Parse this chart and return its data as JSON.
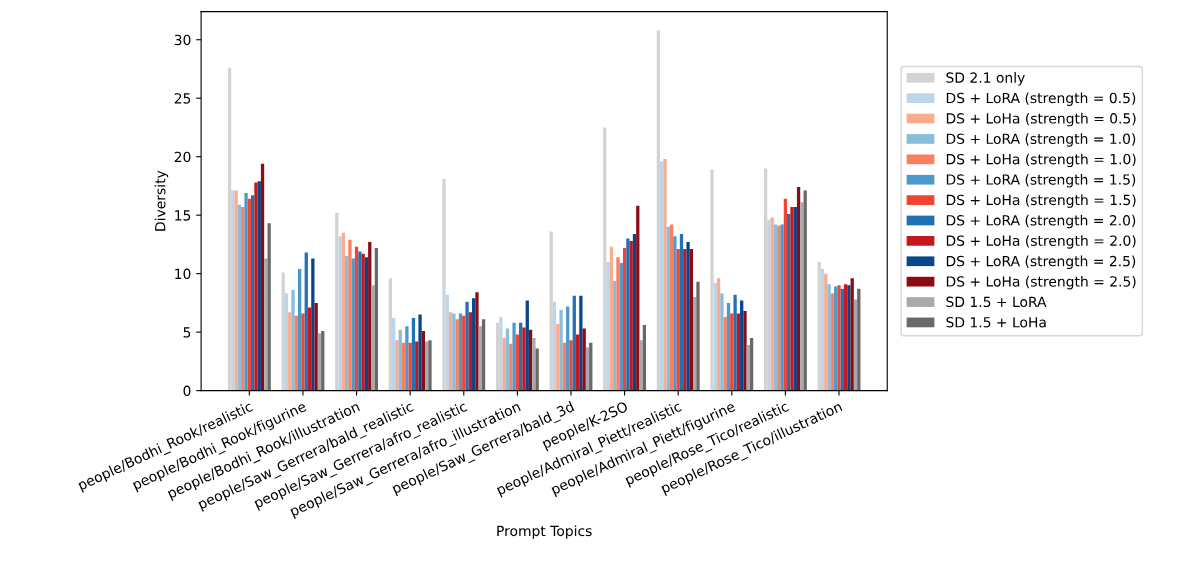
{
  "chart_data": {
    "type": "bar",
    "xlabel": "Prompt Topics",
    "ylabel": "Diversity",
    "ylim": [
      0,
      32.4
    ],
    "yticks": [
      0,
      5,
      10,
      15,
      20,
      25,
      30
    ],
    "grid": false,
    "legend": "right",
    "categories": [
      "people/Bodhi_Rook/realistic",
      "people/Bodhi_Rook/figurine",
      "people/Bodhi_Rook/illustration",
      "people/Saw_Gerrera/bald_realistic",
      "people/Saw_Gerrera/afro_realistic",
      "people/Saw_Gerrera/afro_illustration",
      "people/Saw_Gerrera/bald_3d",
      "people/K-2SO",
      "people/Admiral_Piett/realistic",
      "people/Admiral_Piett/figurine",
      "people/Rose_Tico/realistic",
      "people/Rose_Tico/illustration"
    ],
    "series": [
      {
        "name": "SD 2.1 only",
        "color": "#d3d3d3",
        "values": [
          27.6,
          10.1,
          15.2,
          9.6,
          18.1,
          5.8,
          13.6,
          22.5,
          30.8,
          18.9,
          19.0,
          11.0
        ]
      },
      {
        "name": "DS + LoRA (strength = 0.5)",
        "color": "#bad6eb",
        "values": [
          17.1,
          8.3,
          13.2,
          6.2,
          8.2,
          6.3,
          7.6,
          11.0,
          19.6,
          9.2,
          14.6,
          10.4
        ]
      },
      {
        "name": "DS + LoHa (strength = 0.5)",
        "color": "#fcab8f",
        "values": [
          17.1,
          6.7,
          13.5,
          4.3,
          6.7,
          4.5,
          5.7,
          12.3,
          19.8,
          9.6,
          14.8,
          10.0
        ]
      },
      {
        "name": "DS + LoRA (strength = 1.0)",
        "color": "#88bedc",
        "values": [
          15.9,
          8.6,
          11.5,
          5.2,
          6.6,
          5.3,
          6.9,
          9.4,
          14.0,
          8.3,
          14.2,
          9.1
        ]
      },
      {
        "name": "DS + LoHa (strength = 1.0)",
        "color": "#fc7f5f",
        "values": [
          15.7,
          6.4,
          12.9,
          4.1,
          6.1,
          4.0,
          4.1,
          11.4,
          14.2,
          6.3,
          14.1,
          8.3
        ]
      },
      {
        "name": "DS + LoRA (strength = 1.5)",
        "color": "#4d99ca",
        "values": [
          16.9,
          10.4,
          11.3,
          5.5,
          6.6,
          5.8,
          7.2,
          10.9,
          13.2,
          7.5,
          14.2,
          8.9
        ]
      },
      {
        "name": "DS + LoHa (strength = 1.5)",
        "color": "#f14432",
        "values": [
          16.4,
          6.6,
          12.3,
          4.1,
          6.4,
          4.8,
          4.3,
          12.2,
          12.1,
          6.6,
          16.4,
          9.0
        ]
      },
      {
        "name": "DS + LoRA (strength = 2.0)",
        "color": "#2171b5",
        "values": [
          16.7,
          11.8,
          11.9,
          6.2,
          7.6,
          5.8,
          8.1,
          13.0,
          13.4,
          8.2,
          15.1,
          8.7
        ]
      },
      {
        "name": "DS + LoHa (strength = 2.0)",
        "color": "#c8171c",
        "values": [
          17.8,
          7.1,
          11.7,
          4.2,
          6.7,
          5.4,
          4.8,
          12.8,
          12.1,
          6.6,
          15.7,
          9.1
        ]
      },
      {
        "name": "DS + LoRA (strength = 2.5)",
        "color": "#08468b",
        "values": [
          17.9,
          11.3,
          11.4,
          6.5,
          7.9,
          7.7,
          8.1,
          13.4,
          12.7,
          7.7,
          15.7,
          9.0
        ]
      },
      {
        "name": "DS + LoHa (strength = 2.5)",
        "color": "#8b0c14",
        "values": [
          19.4,
          7.5,
          12.7,
          5.1,
          8.4,
          5.2,
          5.3,
          15.8,
          12.1,
          6.8,
          17.4,
          9.6
        ]
      },
      {
        "name": "SD 1.5 + LoRA",
        "color": "#a9a9a9",
        "values": [
          11.3,
          4.9,
          9.0,
          4.2,
          5.5,
          4.5,
          3.7,
          4.3,
          8.0,
          3.9,
          16.1,
          7.8
        ]
      },
      {
        "name": "SD 1.5 + LoHa",
        "color": "#696969",
        "values": [
          14.3,
          5.1,
          12.2,
          4.3,
          6.1,
          3.6,
          4.1,
          5.6,
          9.3,
          4.5,
          17.1,
          8.7
        ]
      }
    ]
  }
}
